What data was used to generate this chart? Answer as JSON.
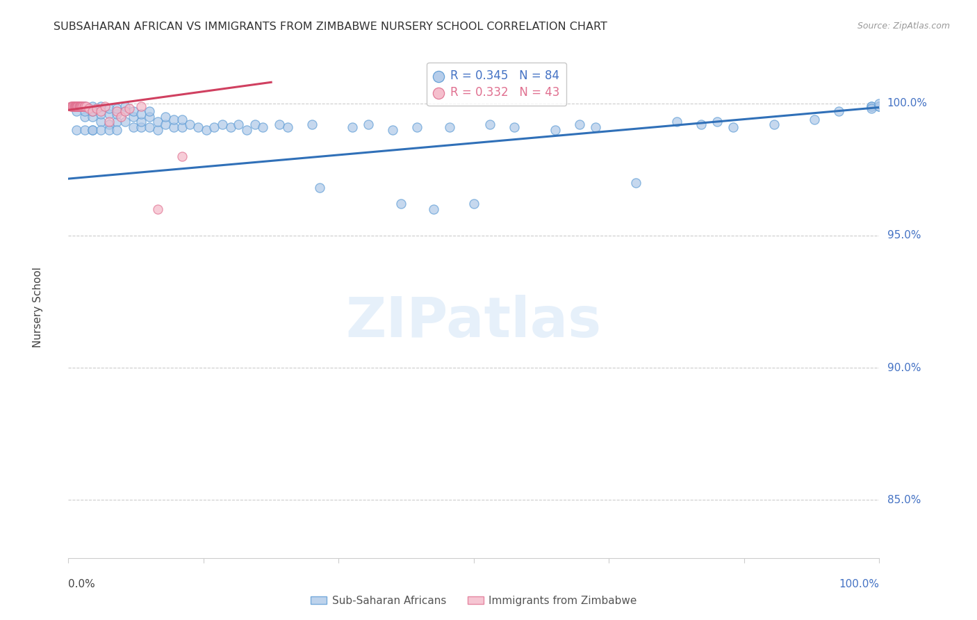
{
  "title": "SUBSAHARAN AFRICAN VS IMMIGRANTS FROM ZIMBABWE NURSERY SCHOOL CORRELATION CHART",
  "source": "Source: ZipAtlas.com",
  "ylabel": "Nursery School",
  "yticks": [
    0.85,
    0.9,
    0.95,
    1.0
  ],
  "ytick_labels": [
    "85.0%",
    "90.0%",
    "95.0%",
    "100.0%"
  ],
  "xlim": [
    0.0,
    1.0
  ],
  "ylim": [
    0.828,
    1.018
  ],
  "blue_color": "#aec8e8",
  "pink_color": "#f4b8c8",
  "blue_edge_color": "#5b9bd5",
  "pink_edge_color": "#e07090",
  "blue_line_color": "#3070b8",
  "pink_line_color": "#d04060",
  "axis_color": "#4472c4",
  "legend_blue_text": "R = 0.345   N = 84",
  "legend_pink_text": "R = 0.332   N = 43",
  "watermark": "ZIPatlas",
  "blue_scatter_x": [
    0.01,
    0.01,
    0.02,
    0.02,
    0.02,
    0.02,
    0.03,
    0.03,
    0.03,
    0.03,
    0.03,
    0.04,
    0.04,
    0.04,
    0.04,
    0.05,
    0.05,
    0.05,
    0.05,
    0.06,
    0.06,
    0.06,
    0.06,
    0.07,
    0.07,
    0.07,
    0.08,
    0.08,
    0.08,
    0.09,
    0.09,
    0.09,
    0.1,
    0.1,
    0.1,
    0.11,
    0.11,
    0.12,
    0.12,
    0.13,
    0.13,
    0.14,
    0.14,
    0.15,
    0.16,
    0.17,
    0.18,
    0.19,
    0.2,
    0.21,
    0.22,
    0.23,
    0.24,
    0.26,
    0.27,
    0.3,
    0.31,
    0.35,
    0.37,
    0.4,
    0.41,
    0.43,
    0.45,
    0.47,
    0.5,
    0.52,
    0.55,
    0.6,
    0.63,
    0.65,
    0.7,
    0.75,
    0.78,
    0.8,
    0.82,
    0.87,
    0.92,
    0.95,
    0.99,
    0.99,
    0.99,
    1.0,
    1.0,
    1.0
  ],
  "blue_scatter_y": [
    0.99,
    0.997,
    0.995,
    0.99,
    0.997,
    0.999,
    0.99,
    0.995,
    0.997,
    0.999,
    0.99,
    0.993,
    0.996,
    0.999,
    0.99,
    0.992,
    0.996,
    0.998,
    0.99,
    0.993,
    0.996,
    0.998,
    0.99,
    0.993,
    0.997,
    0.999,
    0.991,
    0.995,
    0.997,
    0.991,
    0.993,
    0.996,
    0.991,
    0.995,
    0.997,
    0.99,
    0.993,
    0.992,
    0.995,
    0.991,
    0.994,
    0.991,
    0.994,
    0.992,
    0.991,
    0.99,
    0.991,
    0.992,
    0.991,
    0.992,
    0.99,
    0.992,
    0.991,
    0.992,
    0.991,
    0.992,
    0.968,
    0.991,
    0.992,
    0.99,
    0.962,
    0.991,
    0.96,
    0.991,
    0.962,
    0.992,
    0.991,
    0.99,
    0.992,
    0.991,
    0.97,
    0.993,
    0.992,
    0.993,
    0.991,
    0.992,
    0.994,
    0.997,
    0.999,
    0.999,
    0.998,
    0.999,
    0.999,
    1.0
  ],
  "pink_scatter_x": [
    0.003,
    0.004,
    0.005,
    0.006,
    0.006,
    0.007,
    0.007,
    0.008,
    0.008,
    0.009,
    0.009,
    0.01,
    0.01,
    0.01,
    0.011,
    0.011,
    0.012,
    0.012,
    0.013,
    0.013,
    0.014,
    0.014,
    0.015,
    0.015,
    0.016,
    0.017,
    0.018,
    0.019,
    0.02,
    0.022,
    0.025,
    0.03,
    0.035,
    0.04,
    0.045,
    0.05,
    0.06,
    0.065,
    0.07,
    0.075,
    0.09,
    0.11,
    0.14
  ],
  "pink_scatter_y": [
    0.999,
    0.999,
    0.999,
    0.999,
    0.999,
    0.999,
    0.999,
    0.999,
    0.999,
    0.999,
    0.999,
    0.999,
    0.999,
    0.999,
    0.999,
    0.999,
    0.999,
    0.999,
    0.999,
    0.999,
    0.999,
    0.999,
    0.999,
    0.999,
    0.999,
    0.999,
    0.999,
    0.999,
    0.999,
    0.999,
    0.998,
    0.997,
    0.998,
    0.997,
    0.999,
    0.993,
    0.997,
    0.995,
    0.997,
    0.998,
    0.999,
    0.96,
    0.98
  ],
  "blue_trend_x": [
    0.0,
    1.0
  ],
  "blue_trend_y": [
    0.9715,
    0.9985
  ],
  "pink_trend_x": [
    0.0,
    0.25
  ],
  "pink_trend_y": [
    0.9975,
    1.008
  ]
}
